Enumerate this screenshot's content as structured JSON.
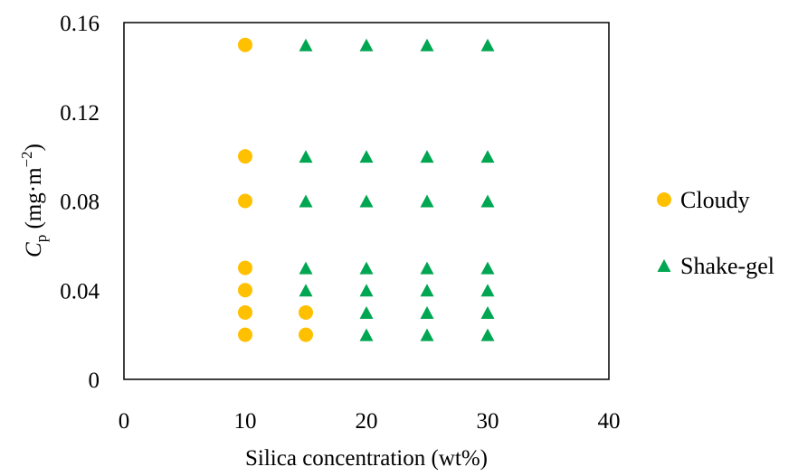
{
  "chart_data": {
    "type": "scatter",
    "title": "",
    "xlabel": "Silica concentration (wt%)",
    "ylabel": {
      "symbol": "C",
      "subscript": "p",
      "units_prefix": " (mg·m",
      "units_superscript": "−2",
      "units_suffix": ")"
    },
    "xlim": [
      0,
      40
    ],
    "ylim": [
      0,
      0.16
    ],
    "xticks": [
      0,
      10,
      20,
      30,
      40
    ],
    "xtick_labels": [
      "0",
      "10",
      "20",
      "30",
      "40"
    ],
    "yticks": [
      0,
      0.04,
      0.08,
      0.12,
      0.16
    ],
    "ytick_labels": [
      "0",
      "0.04",
      "0.08",
      "0.12",
      "0.16"
    ],
    "grid": false,
    "legend_position": "right",
    "series": [
      {
        "name": "Cloudy",
        "marker": "circle",
        "color": "#FFC000",
        "points": [
          [
            10,
            0.02
          ],
          [
            10,
            0.03
          ],
          [
            10,
            0.04
          ],
          [
            10,
            0.05
          ],
          [
            10,
            0.08
          ],
          [
            10,
            0.1
          ],
          [
            10,
            0.15
          ],
          [
            15,
            0.02
          ],
          [
            15,
            0.03
          ]
        ]
      },
      {
        "name": "Shake-gel",
        "marker": "triangle",
        "color": "#00A651",
        "points": [
          [
            15,
            0.04
          ],
          [
            15,
            0.05
          ],
          [
            15,
            0.08
          ],
          [
            15,
            0.1
          ],
          [
            15,
            0.15
          ],
          [
            20,
            0.02
          ],
          [
            20,
            0.03
          ],
          [
            20,
            0.04
          ],
          [
            20,
            0.05
          ],
          [
            20,
            0.08
          ],
          [
            20,
            0.1
          ],
          [
            20,
            0.15
          ],
          [
            25,
            0.02
          ],
          [
            25,
            0.03
          ],
          [
            25,
            0.04
          ],
          [
            25,
            0.05
          ],
          [
            25,
            0.08
          ],
          [
            25,
            0.1
          ],
          [
            25,
            0.15
          ],
          [
            30,
            0.02
          ],
          [
            30,
            0.03
          ],
          [
            30,
            0.04
          ],
          [
            30,
            0.05
          ],
          [
            30,
            0.08
          ],
          [
            30,
            0.1
          ],
          [
            30,
            0.15
          ]
        ]
      }
    ]
  }
}
